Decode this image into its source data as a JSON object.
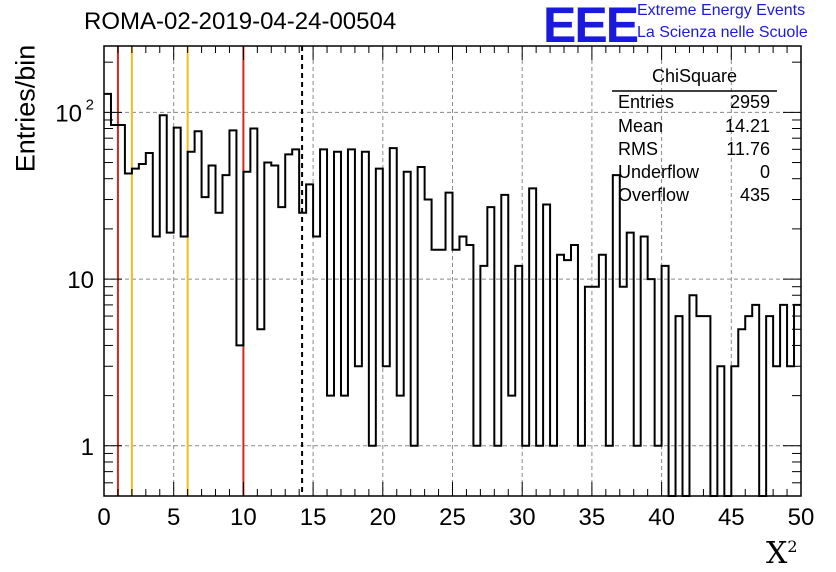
{
  "title": "ROMA-02-2019-04-24-00504",
  "logo": {
    "mark": "EEE",
    "line1": "Extreme Energy Events",
    "line2": "La Scienza nelle Scuole",
    "color": "#1a1adc"
  },
  "stats": {
    "name": "ChiSquare",
    "rows": [
      {
        "label": "Entries",
        "value": "2959"
      },
      {
        "label": "Mean",
        "value": "14.21"
      },
      {
        "label": "RMS",
        "value": "11.76"
      },
      {
        "label": "Underflow",
        "value": "0"
      },
      {
        "label": "Overflow",
        "value": "435"
      }
    ]
  },
  "chart_data": {
    "type": "histogram",
    "xlabel": "X",
    "xlabel_sup": "2",
    "ylabel": "Entries/bin",
    "y_scale": "log",
    "xlim": [
      0,
      50
    ],
    "ylim": [
      0.5,
      250
    ],
    "x_ticks": [
      0,
      5,
      10,
      15,
      20,
      25,
      30,
      35,
      40,
      45,
      50
    ],
    "y_tick_labels": [
      {
        "value": 1,
        "label": "1"
      },
      {
        "value": 10,
        "label": "10"
      },
      {
        "value": 100,
        "label": "10",
        "sup": "2"
      }
    ],
    "grid": true,
    "bin_width": 0.5,
    "counts": [
      129,
      84,
      84,
      43,
      46,
      49,
      57,
      18,
      96,
      19,
      81,
      18,
      58,
      77,
      31,
      48,
      25,
      42,
      78,
      4,
      44,
      80,
      5,
      50,
      48,
      27,
      56,
      60,
      25,
      37,
      18,
      60,
      2,
      58,
      2,
      60,
      3,
      58,
      1,
      46,
      3,
      61,
      2,
      44,
      1,
      47,
      30,
      15,
      15,
      33,
      15,
      18,
      16,
      1,
      12,
      27,
      1,
      32,
      2,
      12,
      1,
      35,
      1,
      28,
      1,
      14,
      13,
      16,
      1,
      9,
      9,
      14,
      1,
      42,
      9,
      19,
      1,
      18,
      10,
      1,
      12,
      0.5,
      6,
      0.5,
      8,
      6,
      6,
      0.5,
      3,
      0.5,
      3,
      5,
      6,
      7,
      0.5,
      6,
      3,
      7,
      3,
      7
    ],
    "vertical_lines": [
      {
        "x": 1,
        "color": "#d42a1e",
        "style": "solid"
      },
      {
        "x": 2,
        "color": "#f0be1e",
        "style": "solid"
      },
      {
        "x": 6,
        "color": "#f0be1e",
        "style": "solid"
      },
      {
        "x": 10,
        "color": "#d42a1e",
        "style": "solid"
      },
      {
        "x": 14.21,
        "color": "#000000",
        "style": "dashed"
      }
    ]
  }
}
